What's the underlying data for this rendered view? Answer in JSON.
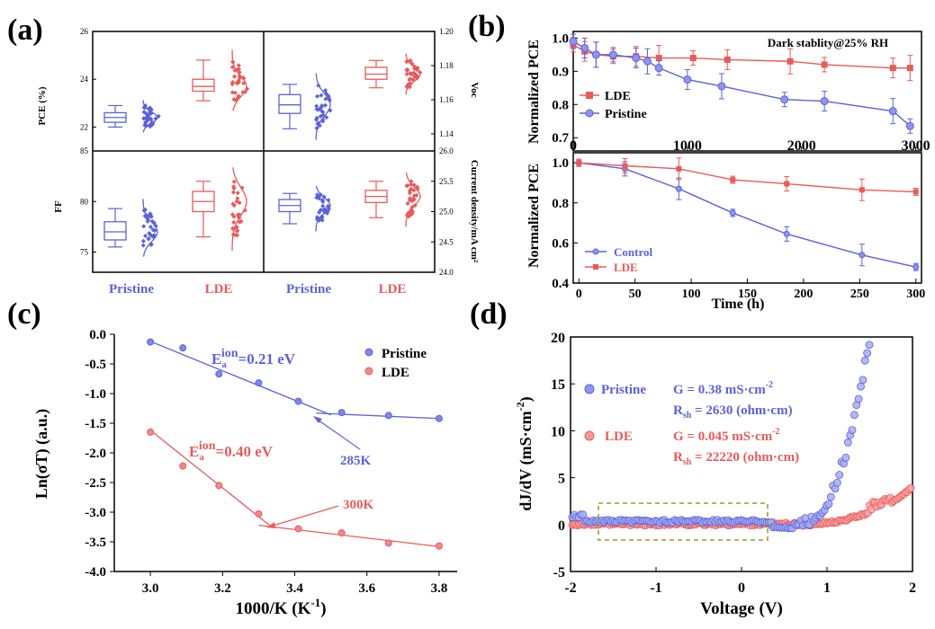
{
  "colors": {
    "pristine": "#5b63d9",
    "lde": "#ea5a5a",
    "axis": "#000000",
    "box_fill": "#ffffff",
    "dash_box": "#9a9a25"
  },
  "chart_data": [
    {
      "panel": "(a)",
      "type": "box",
      "groups": [
        "Pristine",
        "LDE",
        "Pristine",
        "LDE"
      ],
      "subplots": [
        {
          "name": "PCE",
          "ylabel": "PCE (%)",
          "ticks": [
            "22",
            "24",
            "26"
          ],
          "ylim": [
            21,
            26
          ],
          "Pristine": {
            "min": 22.0,
            "q1": 22.2,
            "median": 22.4,
            "q3": 22.6,
            "max": 22.9
          },
          "LDE": {
            "min": 23.1,
            "q1": 23.5,
            "median": 23.7,
            "q3": 24.0,
            "max": 24.8
          }
        },
        {
          "name": "Voc",
          "ylabel": "Voc",
          "ticks": [
            "1.14",
            "1.16",
            "1.18",
            "1.20"
          ],
          "ylim": [
            1.13,
            1.2
          ],
          "Pristine": {
            "min": 1.143,
            "q1": 1.152,
            "median": 1.157,
            "q3": 1.163,
            "max": 1.169
          },
          "LDE": {
            "min": 1.167,
            "q1": 1.172,
            "median": 1.175,
            "q3": 1.179,
            "max": 1.183
          }
        },
        {
          "name": "FF",
          "ylabel": "FF",
          "ticks": [
            "75",
            "80",
            "85"
          ],
          "ylim": [
            73,
            85
          ],
          "Pristine": {
            "min": 75.5,
            "q1": 76.2,
            "median": 77.0,
            "q3": 78.0,
            "max": 79.3
          },
          "LDE": {
            "min": 76.5,
            "q1": 79.0,
            "median": 80.0,
            "q3": 81.0,
            "max": 82.0
          }
        },
        {
          "name": "Jsc",
          "ylabel": "Current density/mA cm²",
          "ticks": [
            "24.0",
            "24.5",
            "25.0",
            "25.5",
            "26.0"
          ],
          "ylim": [
            24.0,
            26.0
          ],
          "Pristine": {
            "min": 24.8,
            "q1": 25.0,
            "median": 25.1,
            "q3": 25.2,
            "max": 25.3
          },
          "LDE": {
            "min": 24.9,
            "q1": 25.15,
            "median": 25.25,
            "q3": 25.35,
            "max": 25.5
          }
        }
      ]
    },
    {
      "panel": "(b) top",
      "type": "line",
      "ylabel": "Normalized PCE",
      "annotation": "Dark stablity@25% RH",
      "xticks": [
        "0",
        "1000",
        "2000",
        "3000"
      ],
      "yticks": [
        "0.7",
        "0.8",
        "0.9",
        "1.0"
      ],
      "xlim": [
        0,
        3050
      ],
      "ylim": [
        0.66,
        1.02
      ],
      "series": [
        {
          "name": "LDE",
          "x": [
            0,
            100,
            200,
            350,
            550,
            750,
            1050,
            1350,
            1900,
            2200,
            2800,
            2950
          ],
          "y": [
            0.98,
            0.96,
            0.95,
            0.945,
            0.945,
            0.94,
            0.94,
            0.935,
            0.93,
            0.92,
            0.91,
            0.91
          ]
        },
        {
          "name": "Pristine",
          "x": [
            0,
            100,
            200,
            350,
            550,
            650,
            750,
            1000,
            1300,
            1850,
            2200,
            2800,
            2950
          ],
          "y": [
            0.99,
            0.97,
            0.95,
            0.95,
            0.94,
            0.93,
            0.91,
            0.875,
            0.855,
            0.815,
            0.81,
            0.78,
            0.735
          ]
        }
      ]
    },
    {
      "panel": "(b) bottom",
      "type": "line",
      "ylabel": "Normalized PCE",
      "xlabel": "Time (h)",
      "xticks": [
        "0",
        "50",
        "100",
        "150",
        "200",
        "250",
        "300"
      ],
      "yticks": [
        "0.4",
        "0.6",
        "0.8",
        "1.0"
      ],
      "xlim": [
        -5,
        305
      ],
      "ylim": [
        0.4,
        1.05
      ],
      "series": [
        {
          "name": "Control",
          "x": [
            0,
            41,
            89,
            137,
            185,
            252,
            300
          ],
          "y": [
            1.0,
            0.97,
            0.87,
            0.75,
            0.645,
            0.54,
            0.48
          ]
        },
        {
          "name": "LDE",
          "x": [
            0,
            41,
            89,
            137,
            185,
            252,
            300
          ],
          "y": [
            1.0,
            0.985,
            0.97,
            0.915,
            0.895,
            0.865,
            0.855
          ]
        }
      ]
    },
    {
      "panel": "(c)",
      "type": "scatter",
      "xlabel": "1000/K (K",
      "xlabel_sup": "-1",
      "ylabel": "Ln(σT) (a.u.)",
      "xticks": [
        "3.0",
        "3.2",
        "3.4",
        "3.6",
        "3.8"
      ],
      "yticks": [
        "0.0",
        "-0.5",
        "-1.0",
        "-1.5",
        "-2.0",
        "-2.5",
        "-3.0",
        "-3.5",
        "-4.0"
      ],
      "xlim": [
        2.9,
        3.85
      ],
      "ylim": [
        -4.0,
        0.0
      ],
      "series": [
        {
          "name": "Pristine",
          "x": [
            3.0,
            3.09,
            3.19,
            3.3,
            3.41,
            3.53,
            3.66,
            3.8
          ],
          "y": [
            -0.13,
            -0.23,
            -0.67,
            -0.82,
            -1.13,
            -1.32,
            -1.37,
            -1.42
          ]
        },
        {
          "name": "LDE",
          "x": [
            3.0,
            3.09,
            3.19,
            3.3,
            3.41,
            3.53,
            3.66,
            3.8
          ],
          "y": [
            -1.65,
            -2.22,
            -2.55,
            -3.03,
            -3.28,
            -3.35,
            -3.52,
            -3.57
          ]
        }
      ],
      "annotations": {
        "ea_pristine": "=0.21 eV",
        "ea_lde": "=0.40 eV",
        "ea_base": "E",
        "ea_sub": "a",
        "ea_sup": "ion",
        "k285": "285K",
        "k300": "300K"
      }
    },
    {
      "panel": "(d)",
      "type": "scatter",
      "xlabel": "Voltage (V)",
      "ylabel": "dJ/dV (mS·cm",
      "ylabel_sup": "-2",
      "xticks": [
        "-2",
        "-1",
        "0",
        "1",
        "2"
      ],
      "yticks": [
        "-5",
        "0",
        "5",
        "10",
        "15",
        "20"
      ],
      "xlim": [
        -2,
        2
      ],
      "ylim": [
        -5,
        20
      ],
      "series": [
        {
          "name": "Pristine",
          "description": "flat near 0 from -2 V to 0.5 V, then rises steeply to 20 at 1.5 V"
        },
        {
          "name": "LDE",
          "description": "flat near 0 from -2 V to 0.8 V, then rises to about 4 at 2 V"
        }
      ],
      "annotations": {
        "pristine_G": "G = 0.38 mS·cm",
        "pristine_G_sup": "-2",
        "pristine_R": "R",
        "pristine_R_sub": "sh",
        "pristine_R_val": " = 2630 (ohm·cm)",
        "lde_G": "G = 0.045 mS·cm",
        "lde_G_sup": "-2",
        "lde_R": "R",
        "lde_R_sub": "sh",
        "lde_R_val": " = 22220 (ohm·cm)"
      }
    }
  ],
  "labels": {
    "a": "(a)",
    "b": "(b)",
    "c": "(c)",
    "d": "(d)",
    "pristine": "Pristine",
    "lde": "LDE",
    "control": "Control"
  }
}
